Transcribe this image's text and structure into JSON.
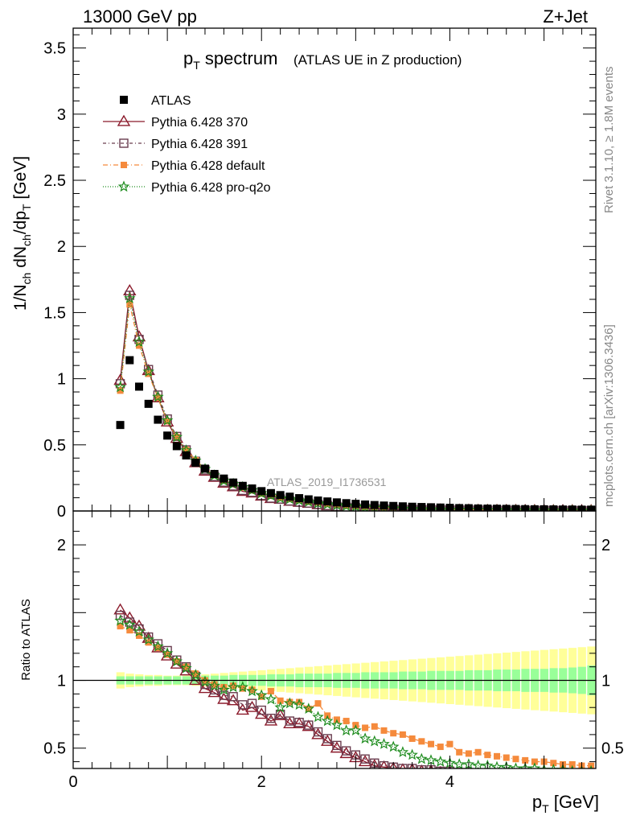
{
  "header": {
    "energy_label": "13000 GeV pp",
    "process_label": "Z+Jet"
  },
  "side": {
    "rivet_label": "Rivet 3.1.10, ≥ 1.8M events",
    "mcplots_label": "mcplots.cern.ch [arXiv:1306.3436]"
  },
  "chart_data": {
    "type": "scatter",
    "title_main": "p",
    "title_main_sub": "T",
    "title_main_rest": " spectrum",
    "title_paren": "(ATLAS UE in Z production)",
    "analysis_label": "ATLAS_2019_I1736531",
    "ylabel_parts": [
      "1/N",
      "ch",
      " dN",
      "ch",
      "/dp",
      "T",
      " [GeV]"
    ],
    "ratio_ylabel": "Ratio to ATLAS",
    "xlabel_p": "p",
    "xlabel_sub": "T",
    "xlabel_unit": " [GeV]",
    "xlim": [
      0,
      5.55
    ],
    "ylim_main": [
      0,
      3.65
    ],
    "ylim_ratio": [
      0.35,
      2.25
    ],
    "x_ticks": [
      {
        "v": 0,
        "label": "0"
      },
      {
        "v": 2,
        "label": "2"
      },
      {
        "v": 4,
        "label": "4"
      }
    ],
    "y_ticks_main": [
      {
        "v": 0,
        "label": "0"
      },
      {
        "v": 0.5,
        "label": "0.5"
      },
      {
        "v": 1,
        "label": "1"
      },
      {
        "v": 1.5,
        "label": "1.5"
      },
      {
        "v": 2,
        "label": "2"
      },
      {
        "v": 2.5,
        "label": "2.5"
      },
      {
        "v": 3,
        "label": "3"
      },
      {
        "v": 3.5,
        "label": "3.5"
      }
    ],
    "y_ticks_ratio": [
      {
        "v": 0.5,
        "label": "0.5"
      },
      {
        "v": 1,
        "label": "1"
      },
      {
        "v": 2,
        "label": "2"
      }
    ],
    "x": [
      0.5,
      0.6,
      0.7,
      0.8,
      0.9,
      1.0,
      1.1,
      1.2,
      1.3,
      1.4,
      1.5,
      1.6,
      1.7,
      1.8,
      1.9,
      2.0,
      2.1,
      2.2,
      2.3,
      2.4,
      2.5,
      2.6,
      2.7,
      2.8,
      2.9,
      3.0,
      3.1,
      3.2,
      3.3,
      3.4,
      3.5,
      3.6,
      3.7,
      3.8,
      3.9,
      4.0,
      4.1,
      4.2,
      4.3,
      4.4,
      4.5,
      4.6,
      4.7,
      4.8,
      4.9,
      5.0,
      5.1,
      5.2,
      5.3,
      5.4,
      5.5
    ],
    "data_series": {
      "name": "ATLAS",
      "values": [
        0.65,
        1.14,
        0.94,
        0.81,
        0.69,
        0.57,
        0.49,
        0.42,
        0.365,
        0.32,
        0.28,
        0.245,
        0.215,
        0.19,
        0.17,
        0.15,
        0.135,
        0.12,
        0.108,
        0.097,
        0.088,
        0.079,
        0.072,
        0.065,
        0.059,
        0.054,
        0.049,
        0.045,
        0.041,
        0.038,
        0.035,
        0.032,
        0.03,
        0.028,
        0.026,
        0.024,
        0.022,
        0.021,
        0.019,
        0.018,
        0.017,
        0.016,
        0.015,
        0.014,
        0.013,
        0.013,
        0.012,
        0.011,
        0.011,
        0.01,
        0.01
      ]
    },
    "series": [
      {
        "name": "Pythia 6.428 370",
        "color": "#8b1a2b",
        "dash": "",
        "marker": "triangle",
        "ratio": [
          1.52,
          1.46,
          1.4,
          1.31,
          1.24,
          1.18,
          1.12,
          1.07,
          1.0,
          0.94,
          0.91,
          0.86,
          0.85,
          0.78,
          0.8,
          0.75,
          0.7,
          0.74,
          0.68,
          0.68,
          0.66,
          0.6,
          0.55,
          0.5,
          0.46,
          0.43,
          0.4,
          0.37,
          0.36,
          0.35,
          0.34,
          0.34,
          0.33,
          0.33,
          0.32,
          0.32,
          0.31,
          0.31,
          0.3,
          0.3,
          0.3,
          0.29,
          0.29,
          0.29,
          0.28,
          0.28,
          0.28,
          0.27,
          0.27,
          0.27,
          0.27
        ]
      },
      {
        "name": "Pythia 6.428 391",
        "color": "#6a3d4f",
        "dash": "4,3,1,3",
        "marker": "square-open",
        "ratio": [
          1.48,
          1.43,
          1.38,
          1.32,
          1.27,
          1.22,
          1.15,
          1.1,
          1.03,
          0.97,
          0.93,
          0.89,
          0.88,
          0.82,
          0.83,
          0.78,
          0.72,
          0.75,
          0.7,
          0.69,
          0.67,
          0.62,
          0.57,
          0.52,
          0.48,
          0.45,
          0.42,
          0.39,
          0.37,
          0.36,
          0.35,
          0.35,
          0.34,
          0.34,
          0.33,
          0.33,
          0.32,
          0.32,
          0.31,
          0.31,
          0.31,
          0.3,
          0.3,
          0.3,
          0.29,
          0.29,
          0.29,
          0.28,
          0.28,
          0.28,
          0.28
        ]
      },
      {
        "name": "Pythia 6.428 default",
        "color": "#f58a3c",
        "dash": "6,3,1,3",
        "marker": "square-filled",
        "ratio": [
          1.4,
          1.37,
          1.33,
          1.28,
          1.24,
          1.19,
          1.14,
          1.1,
          1.05,
          1.0,
          0.97,
          0.95,
          0.96,
          0.94,
          0.93,
          0.88,
          0.92,
          0.85,
          0.84,
          0.84,
          0.79,
          0.83,
          0.74,
          0.71,
          0.7,
          0.67,
          0.65,
          0.66,
          0.63,
          0.61,
          0.6,
          0.57,
          0.55,
          0.53,
          0.51,
          0.53,
          0.47,
          0.46,
          0.47,
          0.45,
          0.44,
          0.43,
          0.42,
          0.41,
          0.4,
          0.4,
          0.39,
          0.38,
          0.38,
          0.37,
          0.37
        ]
      },
      {
        "name": "Pythia 6.428 pro-q2o",
        "color": "#1e8c1e",
        "dash": "1,2",
        "marker": "star",
        "ratio": [
          1.44,
          1.41,
          1.36,
          1.3,
          1.25,
          1.2,
          1.14,
          1.09,
          1.04,
          0.99,
          0.96,
          0.93,
          0.95,
          0.95,
          0.92,
          0.89,
          0.86,
          0.8,
          0.83,
          0.82,
          0.79,
          0.73,
          0.7,
          0.67,
          0.63,
          0.63,
          0.57,
          0.55,
          0.53,
          0.51,
          0.47,
          0.45,
          0.42,
          0.41,
          0.4,
          0.39,
          0.38,
          0.38,
          0.37,
          0.37,
          0.36,
          0.36,
          0.35,
          0.35,
          0.35,
          0.34,
          0.34,
          0.34,
          0.33,
          0.33,
          0.33
        ]
      }
    ],
    "band_inner_halfwidth": [
      0.03,
      0.03,
      0.03,
      0.03,
      0.03,
      0.03,
      0.03,
      0.03,
      0.03,
      0.035,
      0.035,
      0.035,
      0.04,
      0.04,
      0.04,
      0.04,
      0.045,
      0.045,
      0.045,
      0.05,
      0.05,
      0.05,
      0.05,
      0.055,
      0.055,
      0.055,
      0.06,
      0.06,
      0.06,
      0.06,
      0.065,
      0.065,
      0.065,
      0.07,
      0.07,
      0.07,
      0.07,
      0.075,
      0.075,
      0.075,
      0.08,
      0.08,
      0.08,
      0.085,
      0.085,
      0.085,
      0.09,
      0.09,
      0.095,
      0.1,
      0.11
    ],
    "band_outer_halfwidth": [
      0.06,
      0.05,
      0.045,
      0.04,
      0.04,
      0.035,
      0.035,
      0.035,
      0.04,
      0.045,
      0.05,
      0.055,
      0.06,
      0.065,
      0.07,
      0.075,
      0.08,
      0.085,
      0.09,
      0.095,
      0.1,
      0.105,
      0.11,
      0.115,
      0.12,
      0.125,
      0.13,
      0.135,
      0.14,
      0.145,
      0.15,
      0.155,
      0.16,
      0.165,
      0.17,
      0.175,
      0.18,
      0.185,
      0.19,
      0.195,
      0.2,
      0.205,
      0.21,
      0.215,
      0.22,
      0.225,
      0.23,
      0.235,
      0.24,
      0.245,
      0.25
    ],
    "grid": false,
    "legend_position": "top-left"
  }
}
